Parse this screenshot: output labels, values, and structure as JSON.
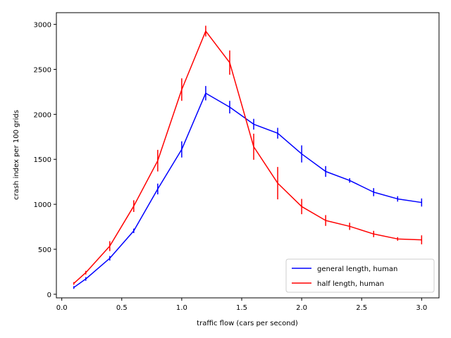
{
  "chart_data": {
    "type": "line",
    "title": "",
    "xlabel": "traffic flow (cars per second)",
    "ylabel": "crash index per 100 grids",
    "xlim": [
      -0.045,
      3.145
    ],
    "ylim": [
      -40,
      3130
    ],
    "xticks": [
      0.0,
      0.5,
      1.0,
      1.5,
      2.0,
      2.5,
      3.0
    ],
    "xtick_labels": [
      "0.0",
      "0.5",
      "1.0",
      "1.5",
      "2.0",
      "2.5",
      "3.0"
    ],
    "yticks": [
      0,
      500,
      1000,
      1500,
      2000,
      2500,
      3000
    ],
    "ytick_labels": [
      "0",
      "500",
      "1000",
      "1500",
      "2000",
      "2500",
      "3000"
    ],
    "grid": false,
    "legend_position": "bottom-right",
    "series": [
      {
        "name": "general length, human",
        "color": "#0000ff",
        "x": [
          0.1,
          0.2,
          0.4,
          0.6,
          0.8,
          1.0,
          1.2,
          1.4,
          1.6,
          1.8,
          2.0,
          2.2,
          2.4,
          2.6,
          2.8,
          3.0
        ],
        "y": [
          75,
          170,
          400,
          705,
          1170,
          1610,
          2235,
          2080,
          1890,
          1790,
          1560,
          1365,
          1265,
          1135,
          1060,
          1020
        ],
        "err": [
          15,
          20,
          25,
          25,
          60,
          90,
          80,
          70,
          60,
          60,
          95,
          60,
          25,
          45,
          30,
          45
        ]
      },
      {
        "name": "half length, human",
        "color": "#ff0000",
        "x": [
          0.1,
          0.2,
          0.4,
          0.6,
          0.8,
          1.0,
          1.2,
          1.4,
          1.6,
          1.8,
          2.0,
          2.2,
          2.4,
          2.6,
          2.8,
          3.0
        ],
        "y": [
          120,
          240,
          535,
          980,
          1485,
          2275,
          2925,
          2575,
          1640,
          1235,
          975,
          820,
          755,
          670,
          615,
          605
        ],
        "err": [
          15,
          20,
          55,
          65,
          120,
          125,
          60,
          135,
          145,
          180,
          85,
          60,
          40,
          35,
          20,
          50
        ]
      }
    ]
  }
}
